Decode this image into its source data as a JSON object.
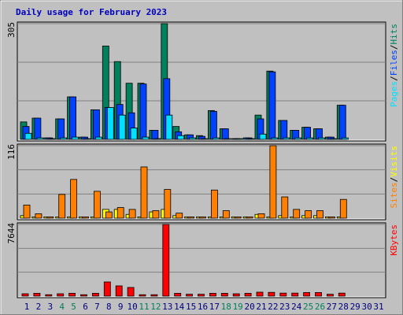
{
  "chart_data": [
    {
      "type": "bar",
      "title": "Daily usage for February 2023",
      "ylim": [
        0,
        305
      ],
      "yticks": [
        305
      ],
      "grid": true,
      "legend_separator": "/",
      "series": [
        {
          "name": "Hits",
          "color": "#00805c",
          "values": [
            46,
            56,
            4,
            54,
            112,
            6,
            78,
            246,
            205,
            148,
            148,
            24,
            305,
            34,
            12,
            10,
            76,
            28,
            2,
            4,
            64,
            180,
            50,
            24,
            32,
            28,
            6,
            90,
            0,
            0,
            0
          ]
        },
        {
          "name": "Files",
          "color": "#0040ff",
          "values": [
            34,
            56,
            4,
            54,
            112,
            6,
            78,
            84,
            92,
            70,
            146,
            24,
            160,
            20,
            12,
            8,
            74,
            28,
            2,
            4,
            54,
            178,
            50,
            24,
            32,
            28,
            6,
            90,
            0,
            0,
            0
          ]
        },
        {
          "name": "Pages",
          "color": "#00e0ff",
          "values": [
            16,
            4,
            2,
            4,
            6,
            2,
            6,
            84,
            64,
            30,
            6,
            2,
            64,
            10,
            4,
            2,
            4,
            2,
            2,
            2,
            14,
            4,
            4,
            4,
            4,
            4,
            2,
            4,
            0,
            0,
            0
          ]
        }
      ]
    },
    {
      "type": "bar",
      "ylim": [
        0,
        116
      ],
      "yticks": [
        116
      ],
      "grid": true,
      "legend_separator": "/",
      "series": [
        {
          "name": "Visits",
          "color": "#ffff00",
          "values": [
            4,
            2,
            2,
            2,
            2,
            2,
            2,
            14,
            14,
            6,
            2,
            10,
            14,
            4,
            2,
            2,
            2,
            2,
            2,
            2,
            6,
            2,
            4,
            2,
            4,
            4,
            2,
            2,
            0,
            0,
            0
          ]
        },
        {
          "name": "Sites",
          "color": "#ff8000",
          "values": [
            21,
            7,
            2,
            38,
            62,
            2,
            43,
            10,
            17,
            14,
            82,
            12,
            46,
            8,
            2,
            2,
            45,
            12,
            2,
            2,
            7,
            116,
            34,
            14,
            12,
            12,
            2,
            30,
            0,
            0,
            0
          ]
        }
      ]
    },
    {
      "type": "bar",
      "ylim": [
        0,
        7644
      ],
      "yticks": [
        7644
      ],
      "grid": true,
      "categories": [
        "1",
        "2",
        "3",
        "4",
        "5",
        "6",
        "7",
        "8",
        "9",
        "10",
        "11",
        "12",
        "13",
        "14",
        "15",
        "16",
        "17",
        "18",
        "19",
        "20",
        "21",
        "22",
        "23",
        "24",
        "25",
        "26",
        "27",
        "28",
        "29",
        "30",
        "31"
      ],
      "category_colors": [
        "#000080",
        "#000080",
        "#000080",
        "#00805c",
        "#00805c",
        "#000080",
        "#000080",
        "#000080",
        "#000080",
        "#000080",
        "#00805c",
        "#00805c",
        "#000080",
        "#000080",
        "#000080",
        "#000080",
        "#000080",
        "#00805c",
        "#00805c",
        "#000080",
        "#000080",
        "#000080",
        "#000080",
        "#000080",
        "#00805c",
        "#00805c",
        "#000080",
        "#000080",
        "#000080",
        "#000080",
        "#000080"
      ],
      "series": [
        {
          "name": "KBytes",
          "color": "#ff0000",
          "values": [
            250,
            300,
            150,
            250,
            300,
            150,
            300,
            1512,
            1092,
            924,
            150,
            150,
            7644,
            300,
            200,
            200,
            300,
            300,
            250,
            300,
            420,
            400,
            320,
            320,
            380,
            380,
            200,
            320,
            0,
            0,
            0
          ]
        }
      ]
    }
  ]
}
